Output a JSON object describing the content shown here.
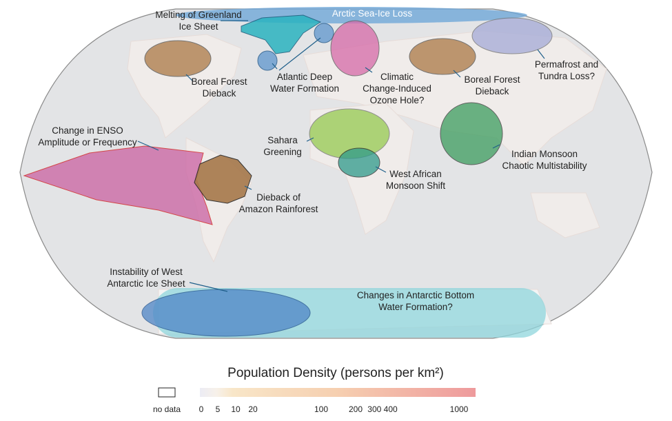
{
  "map": {
    "labels": [
      {
        "id": "arctic",
        "lines": [
          "Arctic Sea-Ice Loss"
        ]
      },
      {
        "id": "greenland",
        "lines": [
          "Melting of Greenland",
          "Ice Sheet"
        ]
      },
      {
        "id": "boreal-west",
        "lines": [
          "Boreal Forest",
          "Dieback"
        ]
      },
      {
        "id": "atlantic",
        "lines": [
          "Atlantic Deep",
          "Water Formation"
        ]
      },
      {
        "id": "ozone",
        "lines": [
          "Climatic",
          "Change-Induced",
          "Ozone Hole?"
        ]
      },
      {
        "id": "boreal-east",
        "lines": [
          "Boreal Forest",
          "Dieback"
        ]
      },
      {
        "id": "permafrost",
        "lines": [
          "Permafrost and",
          "Tundra Loss?"
        ]
      },
      {
        "id": "enso",
        "lines": [
          "Change in ENSO",
          "Amplitude or Frequency"
        ]
      },
      {
        "id": "sahara",
        "lines": [
          "Sahara",
          "Greening"
        ]
      },
      {
        "id": "indian",
        "lines": [
          "Indian Monsoon",
          "Chaotic Multistability"
        ]
      },
      {
        "id": "wam",
        "lines": [
          "West African",
          "Monsoon Shift"
        ]
      },
      {
        "id": "amazon",
        "lines": [
          "Dieback of",
          "Amazon Rainforest"
        ]
      },
      {
        "id": "wais",
        "lines": [
          "Instability of West",
          "Antarctic Ice Sheet"
        ]
      },
      {
        "id": "aabw",
        "lines": [
          "Changes in Antarctic Bottom",
          "Water Formation?"
        ]
      }
    ]
  },
  "legend": {
    "title": "Population Density (persons per km²)",
    "no_data": "no data",
    "ticks": [
      "0",
      "5",
      "10",
      "20",
      "100",
      "200",
      "300 400",
      "1000"
    ]
  }
}
